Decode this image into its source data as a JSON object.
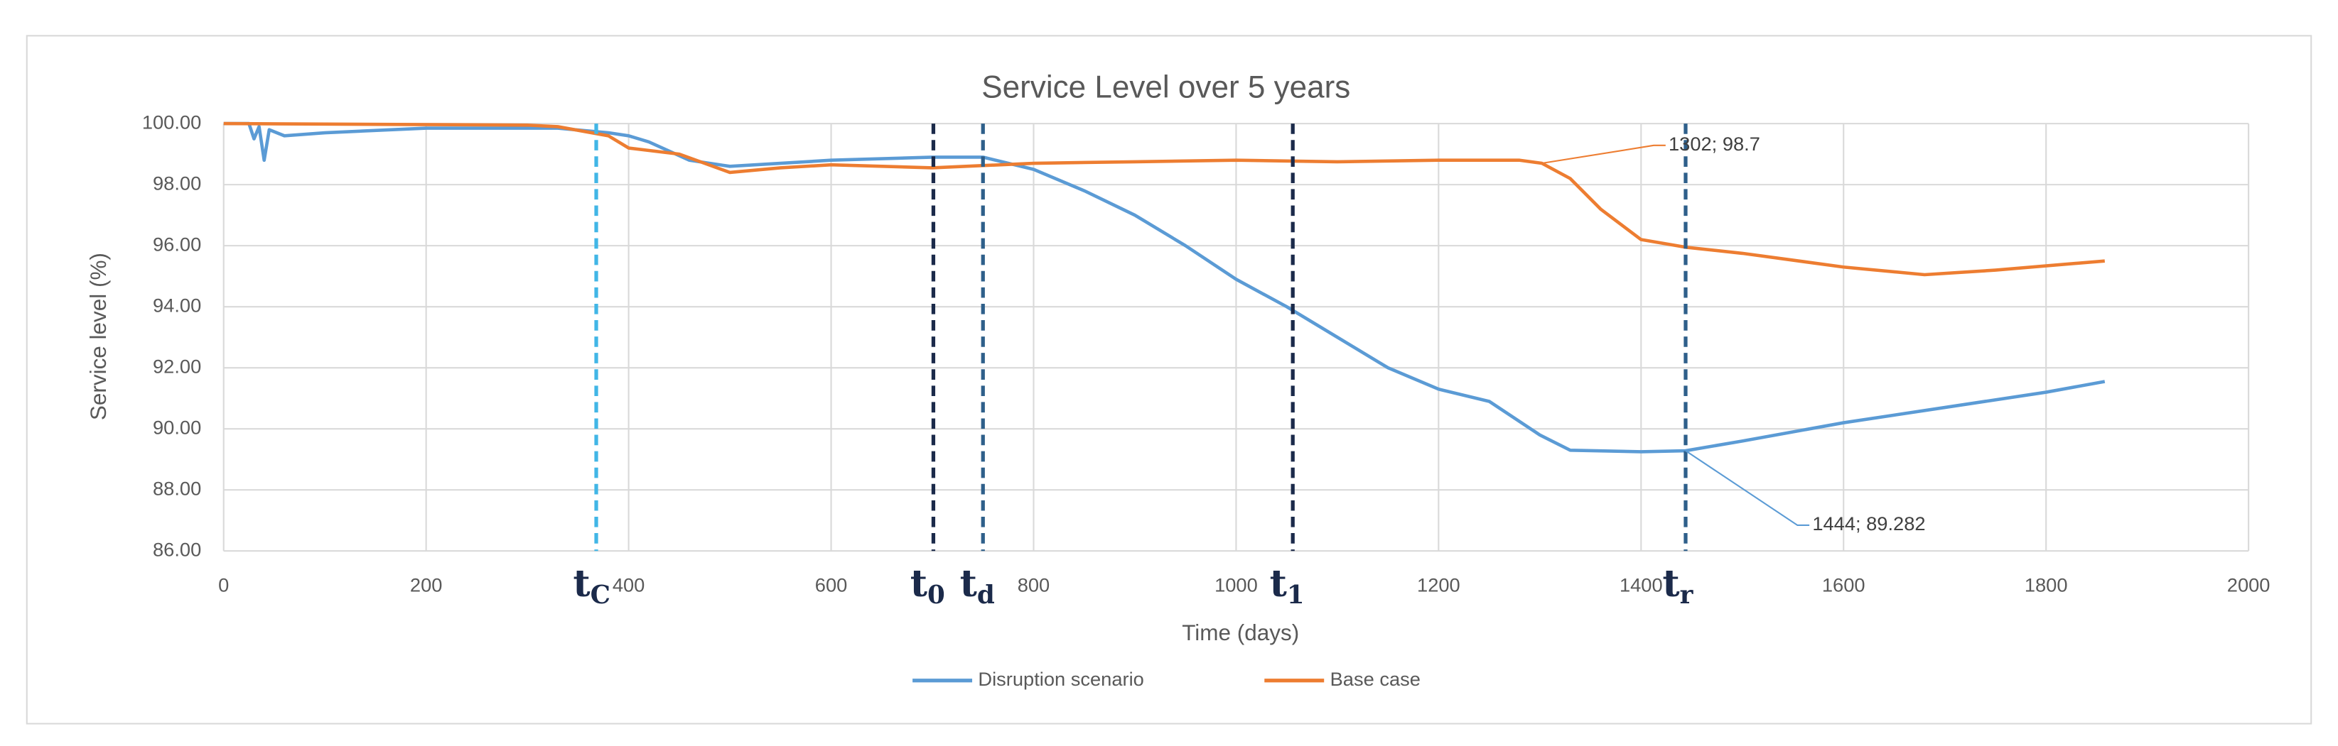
{
  "chart_data": {
    "type": "line",
    "title": "Service Level over 5 years",
    "x_label": "Time (days)",
    "y_label": "Service level (%)",
    "xlim": [
      0,
      2000
    ],
    "xticks": [
      0,
      200,
      400,
      600,
      800,
      1000,
      1200,
      1400,
      1600,
      1800,
      2000
    ],
    "ylim": [
      86,
      100
    ],
    "yticks": [
      {
        "value": 86,
        "label": "86.00"
      },
      {
        "value": 88,
        "label": "88.00"
      },
      {
        "value": 90,
        "label": "90.00"
      },
      {
        "value": 92,
        "label": "92.00"
      },
      {
        "value": 94,
        "label": "94.00"
      },
      {
        "value": 96,
        "label": "96.00"
      },
      {
        "value": 98,
        "label": "98.00"
      },
      {
        "value": 100,
        "label": "100.00"
      }
    ],
    "grid": true,
    "legend": "bottom",
    "series": [
      {
        "name": "Disruption scenario",
        "color": "#5b9bd5",
        "x": [
          0,
          25,
          30,
          35,
          40,
          45,
          60,
          100,
          200,
          300,
          330,
          380,
          400,
          420,
          460,
          500,
          600,
          700,
          750,
          800,
          850,
          900,
          950,
          1000,
          1050,
          1100,
          1150,
          1200,
          1250,
          1300,
          1330,
          1400,
          1444,
          1500,
          1600,
          1700,
          1800,
          1858
        ],
        "values": [
          100,
          100,
          99.5,
          99.9,
          98.8,
          99.8,
          99.6,
          99.7,
          99.85,
          99.85,
          99.85,
          99.7,
          99.6,
          99.4,
          98.8,
          98.6,
          98.8,
          98.9,
          98.9,
          98.5,
          97.8,
          97.0,
          96.0,
          94.9,
          94.0,
          93.0,
          92.0,
          91.3,
          90.9,
          89.8,
          89.3,
          89.25,
          89.282,
          89.6,
          90.2,
          90.7,
          91.2,
          91.55
        ]
      },
      {
        "name": "Base case",
        "color": "#ed7d31",
        "x": [
          0,
          300,
          330,
          380,
          400,
          450,
          500,
          550,
          600,
          700,
          800,
          900,
          1000,
          1100,
          1200,
          1280,
          1302,
          1330,
          1360,
          1400,
          1444,
          1500,
          1600,
          1680,
          1750,
          1858
        ],
        "values": [
          100,
          99.95,
          99.9,
          99.6,
          99.2,
          99.0,
          98.4,
          98.55,
          98.65,
          98.55,
          98.7,
          98.75,
          98.8,
          98.75,
          98.8,
          98.8,
          98.7,
          98.2,
          97.2,
          96.2,
          95.95,
          95.75,
          95.3,
          95.05,
          95.2,
          95.5
        ]
      }
    ],
    "annotations": [
      {
        "text": "1302; 98.7",
        "x": 1302,
        "y": 98.7,
        "series": 1
      },
      {
        "text": "1444; 89.282",
        "x": 1444,
        "y": 89.282,
        "series": 0
      }
    ],
    "markers": [
      {
        "label": "t",
        "sub": "C",
        "x": 368,
        "color": "#41b6e6"
      },
      {
        "label": "t",
        "sub": "0",
        "x": 701,
        "color": "#1b2a4a"
      },
      {
        "label": "t",
        "sub": "d",
        "x": 750,
        "color": "#2e5f8a"
      },
      {
        "label": "t",
        "sub": "1",
        "x": 1056,
        "color": "#1b2a4a"
      },
      {
        "label": "t",
        "sub": "r",
        "x": 1444,
        "color": "#2e5f8a"
      }
    ]
  }
}
